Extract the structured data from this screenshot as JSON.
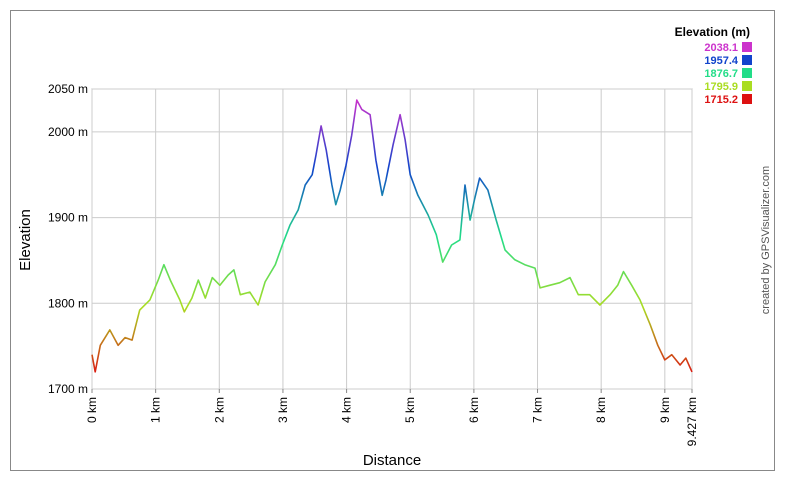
{
  "chart_data": {
    "type": "line",
    "xlabel": "Distance",
    "ylabel": "Elevation",
    "credit": "created by GPSVisualizer.com",
    "legend_title": "Elevation (m)",
    "color_scale": [
      {
        "value": 2038.1,
        "color": "#cc33cc"
      },
      {
        "value": 1957.4,
        "color": "#1144cc"
      },
      {
        "value": 1876.7,
        "color": "#22dd88"
      },
      {
        "value": 1795.9,
        "color": "#aadd22"
      },
      {
        "value": 1715.2,
        "color": "#dd1111"
      }
    ],
    "grid": true,
    "xlim": [
      0,
      9.427
    ],
    "ylim": [
      1700,
      2050
    ],
    "xticks": [
      {
        "value": 0,
        "label": "0 km"
      },
      {
        "value": 1,
        "label": "1 km"
      },
      {
        "value": 2,
        "label": "2 km"
      },
      {
        "value": 3,
        "label": "3 km"
      },
      {
        "value": 4,
        "label": "4 km"
      },
      {
        "value": 5,
        "label": "5 km"
      },
      {
        "value": 6,
        "label": "6 km"
      },
      {
        "value": 7,
        "label": "7 km"
      },
      {
        "value": 8,
        "label": "8 km"
      },
      {
        "value": 9,
        "label": "9 km"
      },
      {
        "value": 9.427,
        "label": "9.427 km"
      }
    ],
    "yticks": [
      {
        "value": 1700,
        "label": "1700 m"
      },
      {
        "value": 1800,
        "label": "1800 m"
      },
      {
        "value": 1900,
        "label": "1900 m"
      },
      {
        "value": 2000,
        "label": "2000 m"
      },
      {
        "value": 2050,
        "label": "2050 m"
      }
    ],
    "x": [
      0,
      0.05,
      0.13,
      0.28,
      0.41,
      0.52,
      0.63,
      0.75,
      0.91,
      1.04,
      1.13,
      1.23,
      1.38,
      1.45,
      1.57,
      1.67,
      1.78,
      1.89,
      2.01,
      2.14,
      2.23,
      2.33,
      2.48,
      2.61,
      2.72,
      2.88,
      2.99,
      3.11,
      3.24,
      3.35,
      3.46,
      3.52,
      3.6,
      3.68,
      3.77,
      3.83,
      3.9,
      3.99,
      4.08,
      4.16,
      4.24,
      4.37,
      4.46,
      4.56,
      4.62,
      4.73,
      4.84,
      4.92,
      5,
      5.12,
      5.28,
      5.41,
      5.51,
      5.65,
      5.78,
      5.86,
      5.94,
      6.01,
      6.09,
      6.22,
      6.35,
      6.49,
      6.64,
      6.8,
      6.96,
      7.04,
      7.19,
      7.35,
      7.51,
      7.64,
      7.82,
      7.98,
      8.14,
      8.26,
      8.35,
      8.48,
      8.61,
      8.77,
      8.89,
      9,
      9.11,
      9.24,
      9.33,
      9.427
    ],
    "values": [
      1740,
      1720,
      1751,
      1769,
      1751,
      1760,
      1757,
      1792,
      1804,
      1827,
      1845,
      1827,
      1804,
      1790,
      1806,
      1827,
      1806,
      1830,
      1821,
      1833,
      1839,
      1810,
      1813,
      1798,
      1825,
      1845,
      1868,
      1891,
      1909,
      1938,
      1950,
      1973,
      2007,
      1979,
      1938,
      1915,
      1932,
      1961,
      1996,
      2037,
      2026,
      2020,
      1967,
      1926,
      1944,
      1985,
      2020,
      1991,
      1950,
      1926,
      1903,
      1880,
      1848,
      1868,
      1874,
      1938,
      1897,
      1921,
      1946,
      1932,
      1897,
      1862,
      1851,
      1845,
      1841,
      1818,
      1821,
      1824,
      1830,
      1810,
      1810,
      1798,
      1810,
      1821,
      1837,
      1821,
      1804,
      1775,
      1751,
      1734,
      1740,
      1728,
      1736,
      1720
    ]
  }
}
